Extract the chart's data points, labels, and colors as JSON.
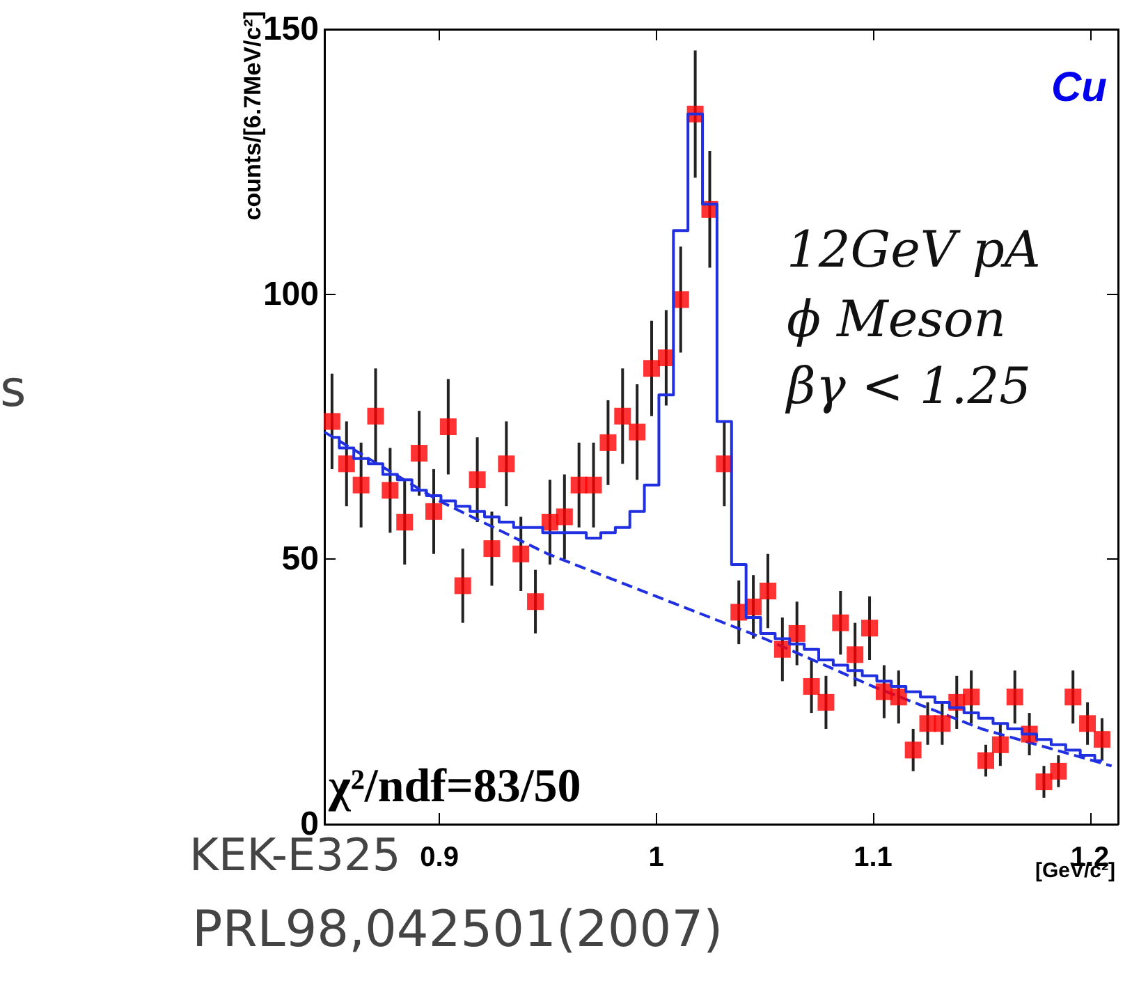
{
  "chart_data": {
    "type": "scatter",
    "ylabel": "counts/[6.7MeV/c²]",
    "xlabel": "[GeV/c²]",
    "xlim": [
      0.847,
      1.213
    ],
    "xticks": [
      0.9,
      1,
      1.1,
      1.2
    ],
    "ylim": [
      0,
      150
    ],
    "yticks": [
      0,
      50,
      100,
      150
    ],
    "grid": false,
    "annotations": [
      "Cu",
      "12GeV pA",
      "ϕ Meson",
      "βγ < 1.25",
      "χ²/ndf=83/50",
      "KEK-E325",
      "PRL98,042501(2007)",
      "s"
    ],
    "series": [
      {
        "color": "#ff0000",
        "marker": "square",
        "x": [
          0.8505,
          0.8572,
          0.8639,
          0.8706,
          0.8773,
          0.884,
          0.8907,
          0.8974,
          0.9041,
          0.9108,
          0.9175,
          0.9242,
          0.9309,
          0.9376,
          0.9443,
          0.951,
          0.9577,
          0.9644,
          0.9711,
          0.9778,
          0.9845,
          0.9912,
          0.9979,
          1.0046,
          1.0113,
          1.018,
          1.0247,
          1.0314,
          1.0381,
          1.0448,
          1.0515,
          1.0582,
          1.0649,
          1.0716,
          1.0783,
          1.085,
          1.0917,
          1.0984,
          1.1051,
          1.1118,
          1.1185,
          1.1252,
          1.1319,
          1.1386,
          1.1453,
          1.152,
          1.1587,
          1.1654,
          1.1721,
          1.1788,
          1.1855,
          1.1922,
          1.1989,
          1.2056
        ],
        "values": [
          76,
          68,
          64,
          77,
          63,
          57,
          70,
          59,
          75,
          45,
          65,
          52,
          68,
          51,
          42,
          57,
          58,
          64,
          64,
          72,
          77,
          74,
          86,
          88,
          99,
          134,
          116,
          68,
          40,
          41,
          44,
          33,
          36,
          26,
          23,
          38,
          32,
          37,
          25,
          24,
          14,
          19,
          19,
          23,
          24,
          12,
          15,
          24,
          17,
          8,
          10,
          24,
          19,
          16
        ],
        "errors": [
          9,
          8,
          8,
          9,
          8,
          8,
          8,
          8,
          9,
          7,
          8,
          7,
          8,
          7,
          6,
          8,
          8,
          8,
          8,
          8,
          9,
          9,
          9,
          9,
          10,
          12,
          11,
          8,
          6,
          6,
          7,
          6,
          6,
          5,
          5,
          6,
          6,
          6,
          5,
          5,
          4,
          4,
          4,
          5,
          5,
          3,
          4,
          5,
          4,
          3,
          3,
          5,
          4,
          4
        ]
      },
      {
        "type": "step",
        "color": "#2030e0",
        "line_style": "solid",
        "x": [
          0.8505,
          0.8572,
          0.8639,
          0.8706,
          0.8773,
          0.884,
          0.8907,
          0.8974,
          0.9041,
          0.9108,
          0.9175,
          0.9242,
          0.9309,
          0.9376,
          0.9443,
          0.951,
          0.9577,
          0.9644,
          0.9711,
          0.9778,
          0.9845,
          0.9912,
          0.9979,
          1.0046,
          1.0113,
          1.018,
          1.0247,
          1.0314,
          1.0381,
          1.0448,
          1.0515,
          1.0582,
          1.0649,
          1.0716,
          1.0783,
          1.085,
          1.0917,
          1.0984,
          1.1051,
          1.1118,
          1.1185,
          1.1252,
          1.1319,
          1.1386,
          1.1453,
          1.152,
          1.1587,
          1.1654,
          1.1721,
          1.1788,
          1.1855,
          1.1922,
          1.1989,
          1.2056
        ],
        "values": [
          73,
          71,
          69,
          68,
          66,
          65,
          63,
          62,
          61,
          60,
          59,
          58,
          57,
          56,
          56,
          55,
          55,
          55,
          54,
          55,
          56,
          59,
          64,
          81,
          112,
          134,
          117,
          76,
          49,
          39,
          36,
          35,
          34,
          33,
          31,
          30,
          29,
          28,
          27,
          26,
          25,
          24,
          23,
          22,
          21,
          20,
          19,
          18,
          17,
          16,
          15,
          14,
          13,
          12
        ]
      },
      {
        "type": "line",
        "color": "#2030e0",
        "line_style": "dashed",
        "x": [
          0.847,
          0.9,
          0.95,
          1.0,
          1.05,
          1.1,
          1.15,
          1.21
        ],
        "values": [
          74,
          61,
          51,
          43,
          35,
          26,
          18,
          11
        ]
      }
    ]
  }
}
